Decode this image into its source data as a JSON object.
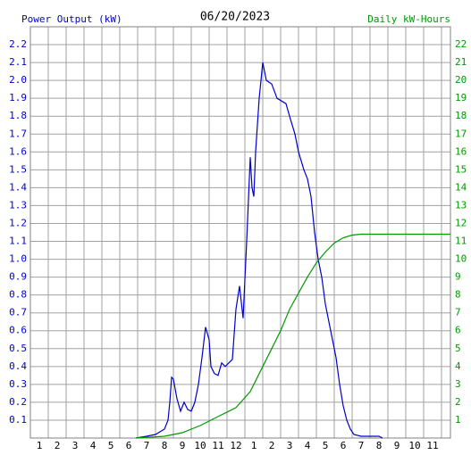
{
  "chart_data": {
    "type": "line",
    "title": "06/20/2023",
    "ylabel": "Power Output (kW)",
    "y2label": "Daily kW-Hours",
    "xlim": [
      0.5,
      24
    ],
    "xticks": [
      1,
      2,
      3,
      4,
      5,
      6,
      7,
      8,
      9,
      10,
      11,
      12,
      {
        "value": 13,
        "label": "1"
      },
      {
        "value": 14,
        "label": "2"
      },
      {
        "value": 15,
        "label": "3"
      },
      {
        "value": 16,
        "label": "4"
      },
      {
        "value": 17,
        "label": "5"
      },
      {
        "value": 18,
        "label": "6"
      },
      {
        "value": 19,
        "label": "7"
      },
      {
        "value": 20,
        "label": "8"
      },
      {
        "value": 21,
        "label": "9"
      },
      {
        "value": 22,
        "label": "10"
      },
      {
        "value": 23,
        "label": "11"
      }
    ],
    "ylim": [
      0,
      2.3
    ],
    "yticks": [
      {
        "value": 0.1,
        "label": "0.1"
      },
      {
        "value": 0.2,
        "label": "0.2"
      },
      {
        "value": 0.3,
        "label": "0.3"
      },
      {
        "value": 0.4,
        "label": "0.4"
      },
      {
        "value": 0.5,
        "label": "0.5"
      },
      {
        "value": 0.6,
        "label": "0.6"
      },
      {
        "value": 0.7,
        "label": "0.7"
      },
      {
        "value": 0.8,
        "label": "0.8"
      },
      {
        "value": 0.9,
        "label": "0.9"
      },
      {
        "value": 1,
        "label": "1.0"
      },
      {
        "value": 1.1,
        "label": "1.1"
      },
      {
        "value": 1.2,
        "label": "1.2"
      },
      {
        "value": 1.3,
        "label": "1.3"
      },
      {
        "value": 1.4,
        "label": "1.4"
      },
      {
        "value": 1.5,
        "label": "1.5"
      },
      {
        "value": 1.6,
        "label": "1.6"
      },
      {
        "value": 1.7,
        "label": "1.7"
      },
      {
        "value": 1.8,
        "label": "1.8"
      },
      {
        "value": 1.9,
        "label": "1.9"
      },
      {
        "value": 2,
        "label": "2.0"
      },
      {
        "value": 2.1,
        "label": "2.1"
      },
      {
        "value": 2.2,
        "label": "2.2"
      }
    ],
    "y2lim": [
      0,
      23
    ],
    "y2ticks": [
      1,
      2,
      3,
      4,
      5,
      6,
      7,
      8,
      9,
      10,
      11,
      12,
      13,
      14,
      15,
      16,
      17,
      18,
      19,
      20,
      21,
      22
    ],
    "grid": true,
    "series": [
      {
        "color": "#0000cc",
        "x": [
          6.4,
          7.0,
          7.5,
          8.0,
          8.2,
          8.3,
          8.4,
          8.5,
          8.7,
          8.9,
          9.1,
          9.3,
          9.5,
          9.7,
          9.9,
          10.1,
          10.3,
          10.5,
          10.6,
          10.8,
          11.0,
          11.2,
          11.4,
          11.6,
          11.8,
          12.0,
          12.2,
          12.4,
          12.6,
          12.8,
          12.9,
          13.0,
          13.1,
          13.3,
          13.5,
          13.7,
          14.0,
          14.3,
          14.8,
          15.0,
          15.3,
          15.5,
          15.8,
          16.0,
          16.2,
          16.4,
          16.6,
          16.8,
          17.0,
          17.2,
          17.4,
          17.6,
          17.8,
          18.0,
          18.2,
          18.4,
          18.6,
          19.0,
          20.0,
          20.2
        ],
        "values": [
          0,
          0.01,
          0.02,
          0.05,
          0.1,
          0.2,
          0.34,
          0.33,
          0.22,
          0.15,
          0.2,
          0.16,
          0.15,
          0.2,
          0.3,
          0.45,
          0.62,
          0.55,
          0.4,
          0.36,
          0.35,
          0.42,
          0.4,
          0.42,
          0.44,
          0.72,
          0.85,
          0.67,
          1.1,
          1.57,
          1.4,
          1.35,
          1.6,
          1.9,
          2.1,
          2.0,
          1.98,
          1.9,
          1.87,
          1.8,
          1.7,
          1.6,
          1.5,
          1.45,
          1.35,
          1.15,
          1.0,
          0.9,
          0.75,
          0.65,
          0.55,
          0.45,
          0.3,
          0.18,
          0.1,
          0.05,
          0.02,
          0.01,
          0.01,
          0
        ]
      },
      {
        "color": "#009900",
        "axis": "y2",
        "x": [
          6.4,
          8,
          9,
          10,
          11,
          12,
          12.8,
          13.5,
          14,
          14.5,
          15,
          15.5,
          16,
          16.5,
          17,
          17.5,
          18,
          18.5,
          19,
          24
        ],
        "values": [
          0,
          0.1,
          0.3,
          0.7,
          1.2,
          1.7,
          2.6,
          4.0,
          5.0,
          6.0,
          7.2,
          8.1,
          9.0,
          9.8,
          10.4,
          10.9,
          11.2,
          11.35,
          11.4,
          11.4
        ]
      }
    ]
  }
}
